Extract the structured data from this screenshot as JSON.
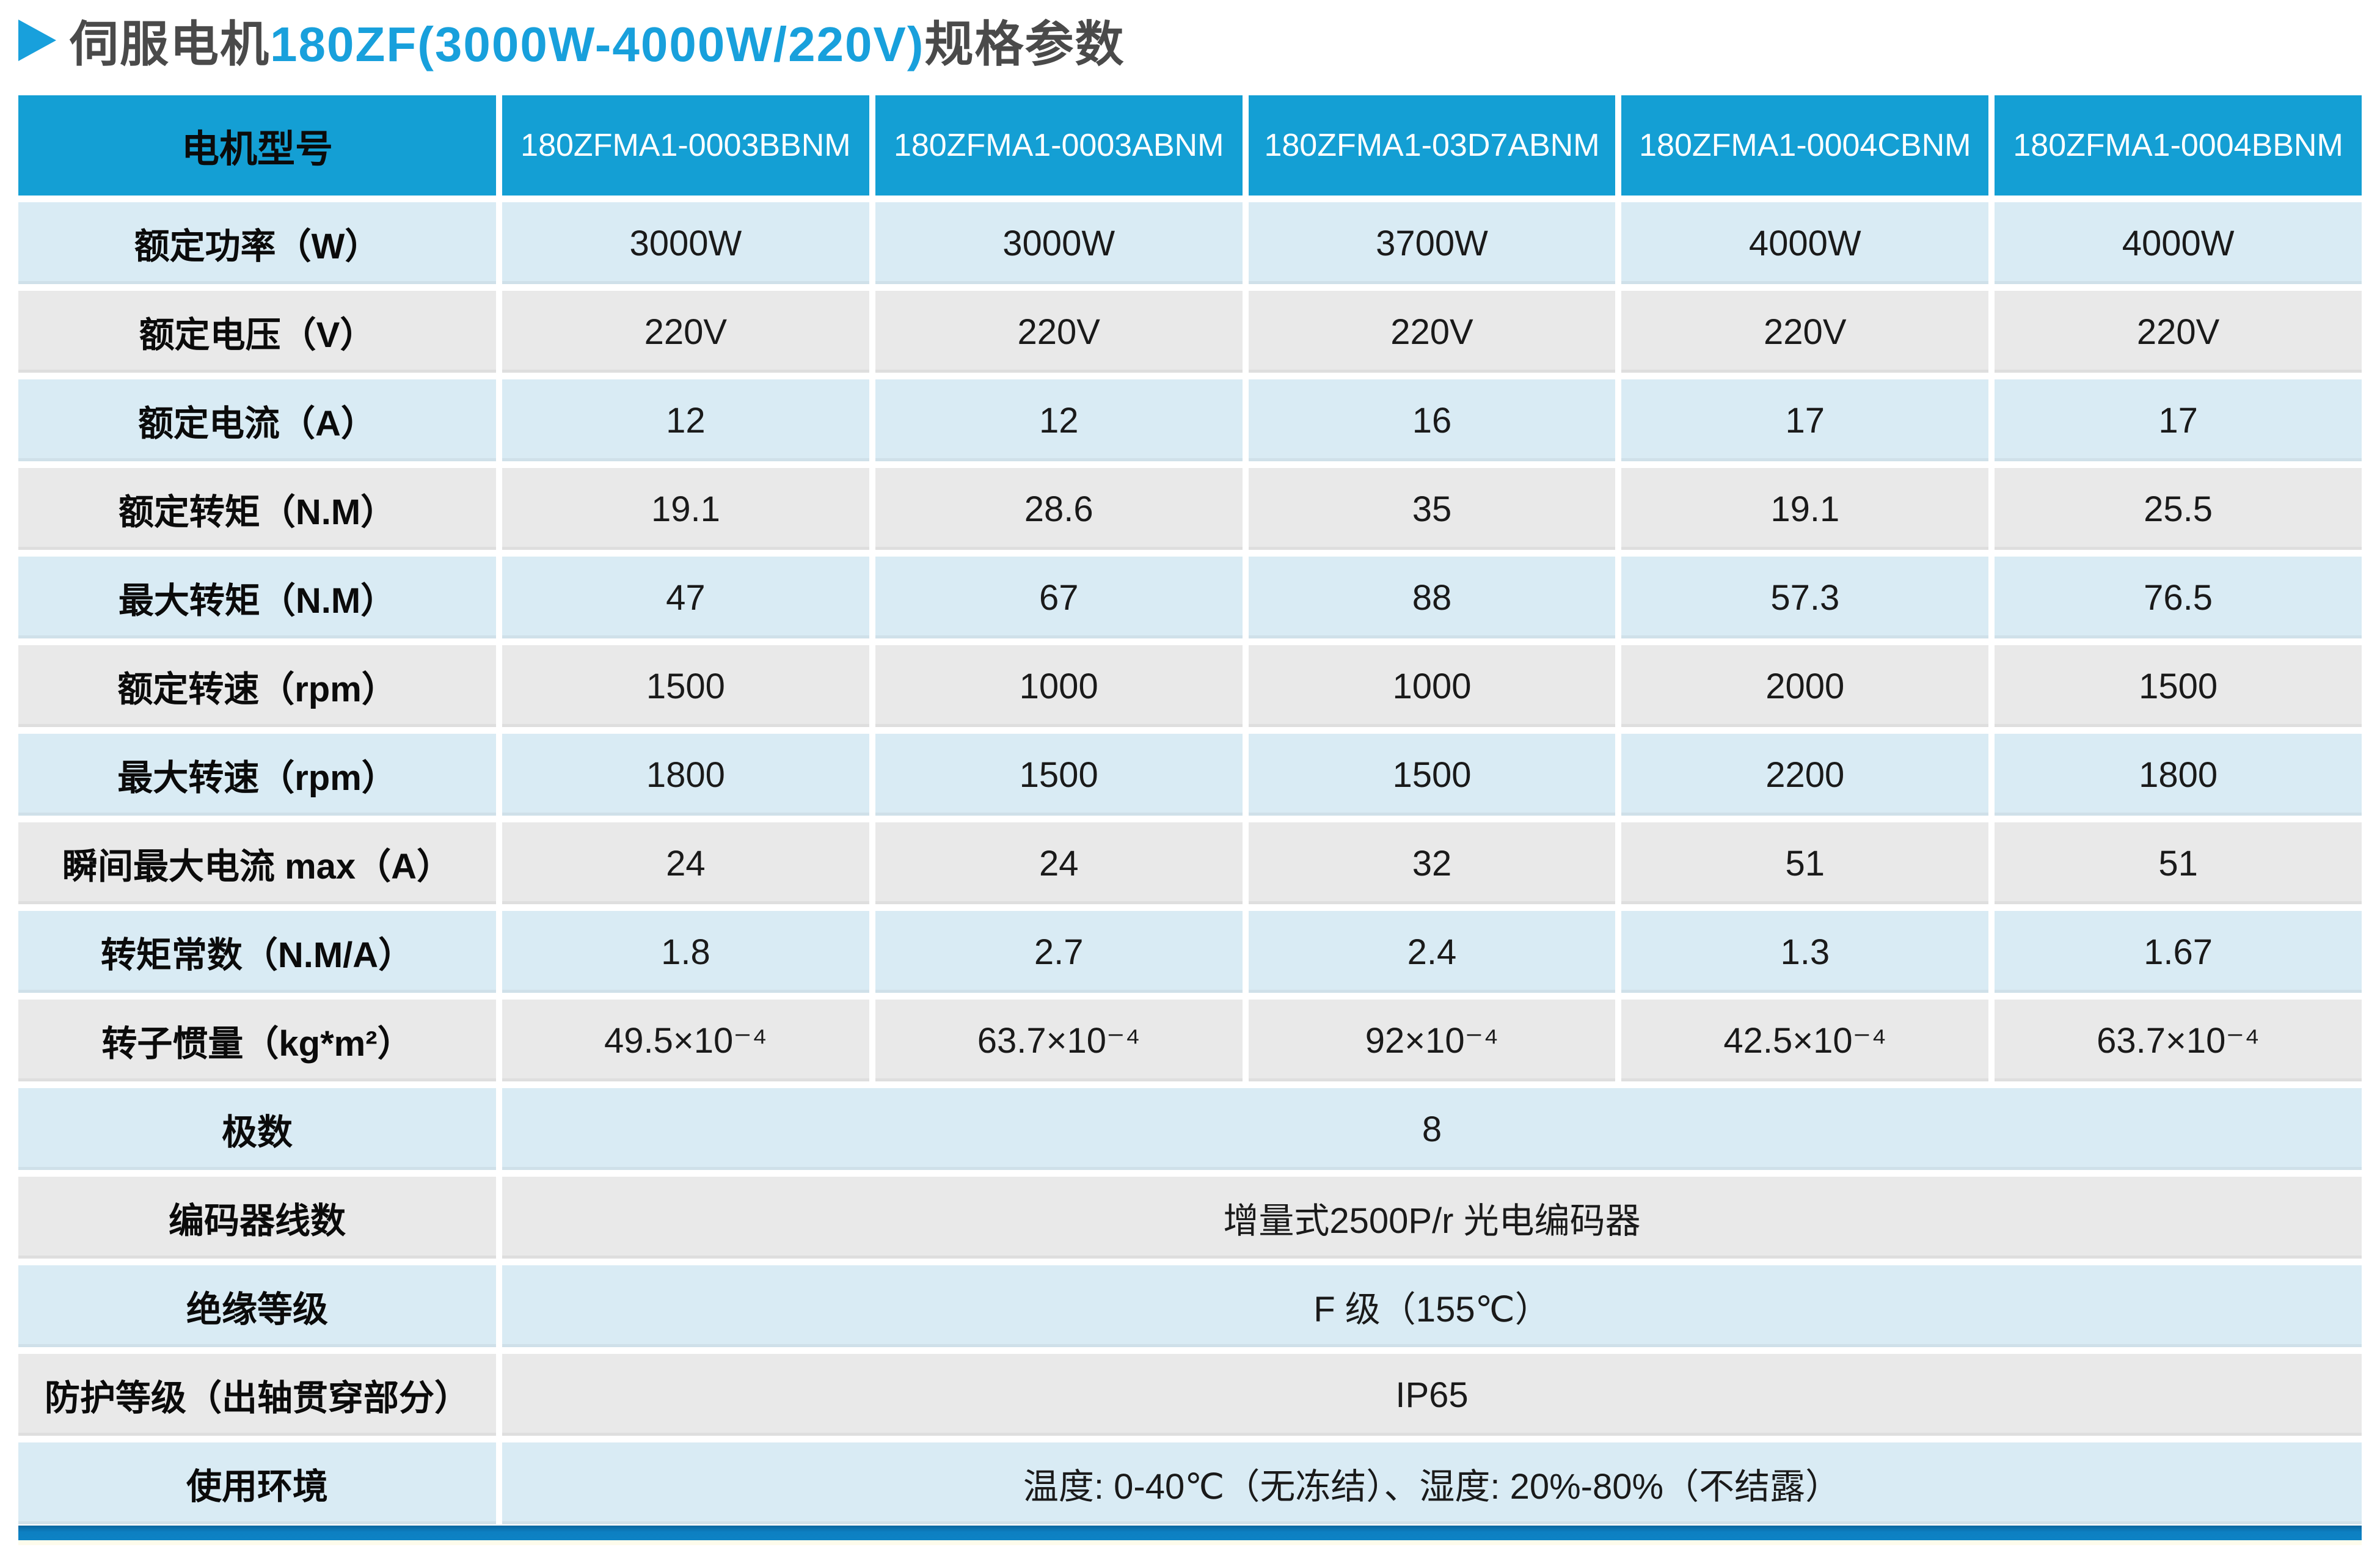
{
  "title": {
    "prefix": "伺服电机",
    "highlight": "180ZF(3000W-4000W/220V)",
    "suffix": "规格参数"
  },
  "colors": {
    "accent_blue": "#18a0dc",
    "header_bg": "#149fd4",
    "row_blue": "#d9ebf4",
    "row_gray": "#e9e9e9",
    "title_text": "#4a4a4a",
    "bottom_bar": "#0d80c2"
  },
  "table": {
    "header": {
      "label": "电机型号",
      "models": [
        "180ZFMA1-0003BBNM",
        "180ZFMA1-0003ABNM",
        "180ZFMA1-03D7ABNM",
        "180ZFMA1-0004CBNM",
        "180ZFMA1-0004BBNM"
      ]
    },
    "rows": [
      {
        "label": "额定功率（W）",
        "values": [
          "3000W",
          "3000W",
          "3700W",
          "4000W",
          "4000W"
        ]
      },
      {
        "label": "额定电压（V）",
        "values": [
          "220V",
          "220V",
          "220V",
          "220V",
          "220V"
        ]
      },
      {
        "label": "额定电流（A）",
        "values": [
          "12",
          "12",
          "16",
          "17",
          "17"
        ]
      },
      {
        "label": "额定转矩（N.M）",
        "values": [
          "19.1",
          "28.6",
          "35",
          "19.1",
          "25.5"
        ]
      },
      {
        "label": "最大转矩（N.M）",
        "values": [
          "47",
          "67",
          "88",
          "57.3",
          "76.5"
        ]
      },
      {
        "label": "额定转速（rpm）",
        "values": [
          "1500",
          "1000",
          "1000",
          "2000",
          "1500"
        ]
      },
      {
        "label": "最大转速（rpm）",
        "values": [
          "1800",
          "1500",
          "1500",
          "2200",
          "1800"
        ]
      },
      {
        "label": "瞬间最大电流 max（A）",
        "values": [
          "24",
          "24",
          "32",
          "51",
          "51"
        ]
      },
      {
        "label": "转矩常数（N.M/A）",
        "values": [
          "1.8",
          "2.7",
          "2.4",
          "1.3",
          "1.67"
        ]
      },
      {
        "label": "转子惯量（kg*m²）",
        "values": [
          "49.5×10⁻⁴",
          "63.7×10⁻⁴",
          "92×10⁻⁴",
          "42.5×10⁻⁴",
          "63.7×10⁻⁴"
        ]
      }
    ],
    "merged_rows": [
      {
        "label": "极数",
        "value": "8"
      },
      {
        "label": "编码器线数",
        "value": "增量式2500P/r 光电编码器"
      },
      {
        "label": "绝缘等级",
        "value": "F 级（155℃）"
      },
      {
        "label": "防护等级（出轴贯穿部分）",
        "value": "IP65"
      },
      {
        "label": "使用环境",
        "value": "温度: 0-40℃（无冻结）、湿度: 20%-80%（不结露）"
      }
    ]
  }
}
